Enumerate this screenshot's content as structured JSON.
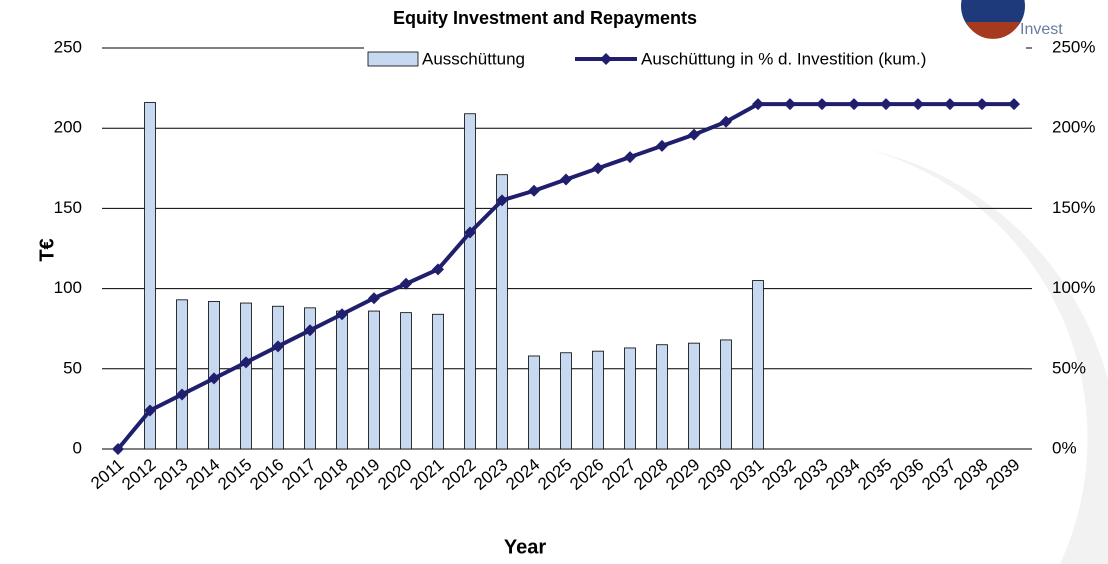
{
  "chart_data": {
    "type": "bar_line",
    "title": "Equity Investment and Repayments",
    "logo_text": "Invest",
    "x_label": "Year",
    "y_label": "T€",
    "categories": [
      "2011",
      "2012",
      "2013",
      "2014",
      "2015",
      "2016",
      "2017",
      "2018",
      "2019",
      "2020",
      "2021",
      "2022",
      "2023",
      "2024",
      "2025",
      "2026",
      "2027",
      "2028",
      "2029",
      "2030",
      "2031",
      "2032",
      "2033",
      "2034",
      "2035",
      "2036",
      "2037",
      "2038",
      "2039"
    ],
    "series": [
      {
        "name": "Ausschüttung",
        "kind": "bar",
        "color": "#c6d9f1",
        "axis": "y",
        "values": [
          0,
          216,
          93,
          92,
          91,
          89,
          88,
          86,
          86,
          85,
          84,
          209,
          171,
          58,
          60,
          61,
          63,
          65,
          66,
          68,
          105,
          0,
          0,
          0,
          0,
          0,
          0,
          0,
          0
        ]
      },
      {
        "name": "Auschüttung in % d. Investition (kum.)",
        "kind": "line",
        "color": "#1f1f6e",
        "axis": "y2",
        "values": [
          0,
          24,
          34,
          44,
          54,
          64,
          74,
          84,
          94,
          103,
          112,
          135,
          155,
          161,
          168,
          175,
          182,
          189,
          196,
          204,
          215,
          215,
          215,
          215,
          215,
          215,
          215,
          215,
          215
        ]
      }
    ],
    "ylim": [
      0,
      250
    ],
    "yticks": [
      0,
      50,
      100,
      150,
      200,
      250
    ],
    "y2lim": [
      0,
      250
    ],
    "y2ticks": [
      {
        "value": 0,
        "label": "0%"
      },
      {
        "value": 50,
        "label": "50%"
      },
      {
        "value": 100,
        "label": "100%"
      },
      {
        "value": 150,
        "label": "150%"
      },
      {
        "value": 200,
        "label": "200%"
      },
      {
        "value": 250,
        "label": "250%"
      }
    ],
    "grid": true,
    "legend": "top"
  }
}
